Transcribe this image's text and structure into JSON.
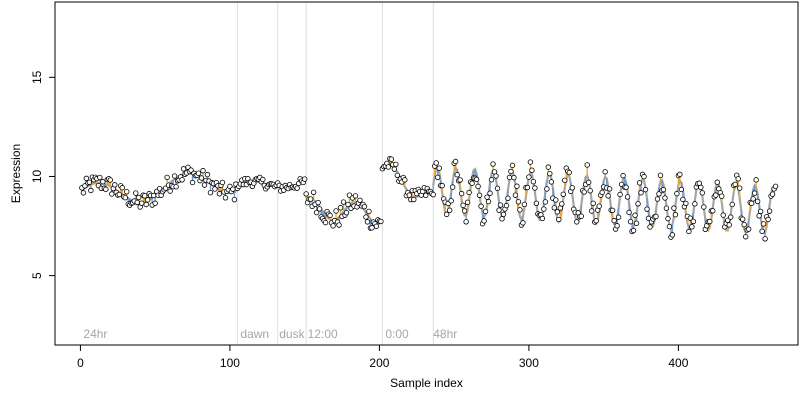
{
  "chart_data": {
    "type": "scatter",
    "xlabel": "Sample index",
    "ylabel": "Expression",
    "xlim": [
      -17,
      480
    ],
    "ylim": [
      1.5,
      18.8
    ],
    "x_ticks": [
      0,
      100,
      200,
      300,
      400
    ],
    "y_ticks": [
      5,
      10,
      15
    ],
    "grid": false,
    "colors": {
      "axis": "#000000",
      "vline": "#dddddd",
      "annotation": "#a6a6a6",
      "trend": "#a6a6a6",
      "above": "#f5a623",
      "below": "#6b9bd2",
      "point_stroke": "#000000",
      "point_fill": "#ffffff"
    },
    "annotations": [
      {
        "label": "24hr",
        "x": 2
      },
      {
        "label": "dawn",
        "x": 107
      },
      {
        "label": "dusk",
        "x": 133
      },
      {
        "label": "12:00",
        "x": 152
      },
      {
        "label": "0:00",
        "x": 204
      },
      {
        "label": "48hr",
        "x": 236
      }
    ],
    "vlines": [
      105,
      132,
      151,
      202,
      236
    ],
    "segments": [
      {
        "x0": 1,
        "x1": 104,
        "base": 9.0,
        "amp": 0.6,
        "period": 60,
        "phase": 0.5,
        "noise": 0.45,
        "drift": 0.8
      },
      {
        "x0": 105,
        "x1": 150,
        "base": 9.6,
        "amp": 0.15,
        "period": 40,
        "phase": 0.0,
        "noise": 0.25,
        "drift": 0.0
      },
      {
        "x0": 151,
        "x1": 201,
        "base": 8.4,
        "amp": 0.5,
        "period": 30,
        "phase": 1.0,
        "noise": 0.5,
        "drift": -0.3
      },
      {
        "x0": 202,
        "x1": 235,
        "base": 10.5,
        "amp": 0.4,
        "period": 26,
        "phase": 0.0,
        "noise": 0.35,
        "drift": -1.8
      },
      {
        "x0": 236,
        "x1": 465,
        "base": 9.3,
        "amp": 1.2,
        "period": 12.5,
        "phase": 0.2,
        "noise": 0.55,
        "drift": -1.0
      }
    ]
  }
}
